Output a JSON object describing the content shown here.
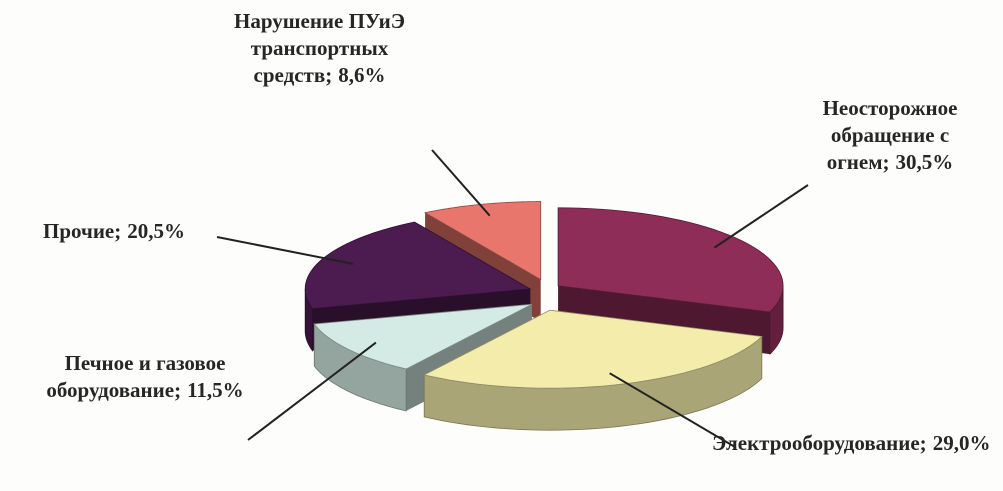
{
  "chart_data": {
    "type": "pie3d",
    "categories": [
      "Неосторожное обращение с огнем;",
      "Электрооборудование;",
      "Печное и газовое оборудование;",
      "Прочие;",
      "Нарушение ПУиЭ транспортных средств;"
    ],
    "values": [
      30.5,
      29.0,
      11.5,
      20.5,
      8.6
    ],
    "value_labels": [
      "30,5%",
      "29,0%",
      "11,5%",
      "20,5%",
      "8,6%"
    ],
    "colors": [
      "#8e2d57",
      "#f3ecaa",
      "#d3ebe4",
      "#4c1b4f",
      "#e9766c"
    ]
  }
}
